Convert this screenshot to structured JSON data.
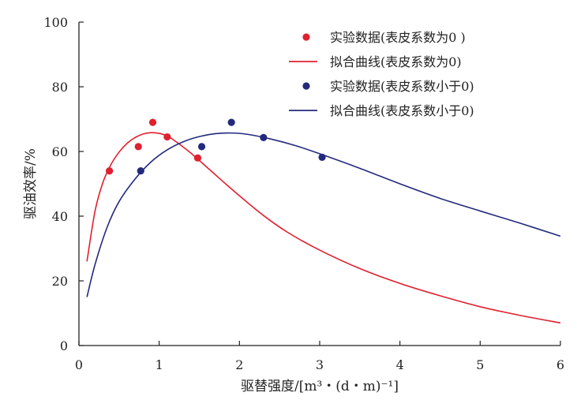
{
  "chart_data": {
    "type": "scatter",
    "xlabel": "驱替强度/[m³・(d・m)⁻¹]",
    "ylabel": "驱油效率/%",
    "xlim": [
      0,
      6
    ],
    "ylim": [
      0,
      100
    ],
    "xticks": [
      0,
      1,
      2,
      3,
      4,
      5,
      6
    ],
    "yticks": [
      0,
      20,
      40,
      60,
      80,
      100
    ],
    "grid": false,
    "legend_position": "top-right",
    "series": [
      {
        "name": "实验数据(表皮系数为0 )",
        "kind": "scatter",
        "color": "#e0202e",
        "x": [
          0.38,
          0.74,
          0.92,
          1.1,
          1.48
        ],
        "y": [
          54,
          61.5,
          69,
          64.5,
          58
        ]
      },
      {
        "name": "拟合曲线(表皮系数为0)",
        "kind": "line",
        "color": "#e0202e",
        "x": [
          0.1,
          0.2,
          0.3,
          0.4,
          0.5,
          0.6,
          0.7,
          0.8,
          0.9,
          1.0,
          1.1,
          1.2,
          1.4,
          1.6,
          1.8,
          2.0,
          2.3,
          2.6,
          3.0,
          3.5,
          4.0,
          4.5,
          5.0,
          5.5,
          6.0
        ],
        "y": [
          26,
          41.5,
          50.5,
          56,
          59.8,
          62.5,
          64.3,
          65.4,
          65.8,
          65.6,
          64.8,
          63.2,
          59.4,
          55,
          50.6,
          46.3,
          40.2,
          35,
          29.5,
          23.8,
          19.2,
          15.4,
          12,
          9.3,
          7
        ]
      },
      {
        "name": "实验数据(表皮系数小于0)",
        "kind": "scatter",
        "color": "#232a7d",
        "x": [
          0.77,
          1.53,
          1.9,
          2.3,
          3.03
        ],
        "y": [
          54,
          61.5,
          69,
          64.3,
          58.2
        ]
      },
      {
        "name": "拟合曲线(表皮系数小于0)",
        "kind": "line",
        "color": "#232a7d",
        "x": [
          0.1,
          0.2,
          0.35,
          0.5,
          0.7,
          0.9,
          1.1,
          1.3,
          1.5,
          1.7,
          1.9,
          2.1,
          2.4,
          2.7,
          3.0,
          3.5,
          4.0,
          4.5,
          5.0,
          5.5,
          6.0
        ],
        "y": [
          15,
          25,
          36.5,
          44.5,
          51.5,
          56.8,
          60.5,
          63,
          64.6,
          65.5,
          65.7,
          65.3,
          63.8,
          61.8,
          59.3,
          54.8,
          50,
          45.5,
          41.6,
          37.8,
          33.8
        ]
      }
    ]
  }
}
